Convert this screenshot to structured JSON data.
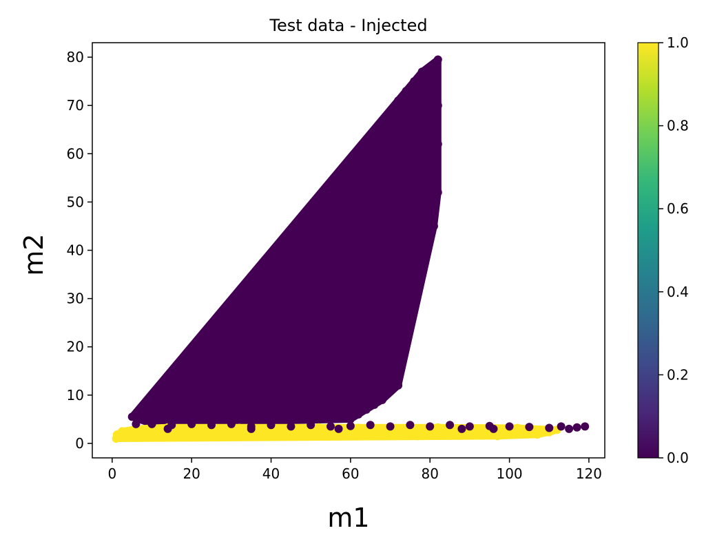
{
  "chart_data": {
    "type": "scatter",
    "title": "Test data - Injected",
    "xlabel": "m1",
    "ylabel": "m2",
    "xlim": [
      -5,
      124
    ],
    "ylim": [
      -3,
      83
    ],
    "xticks": [
      0,
      20,
      40,
      60,
      80,
      100,
      120
    ],
    "yticks": [
      0,
      10,
      20,
      30,
      40,
      50,
      60,
      70,
      80
    ],
    "grid": false,
    "legend": "none",
    "colorbar": {
      "colormap": "viridis",
      "range": [
        0.0,
        1.0
      ],
      "ticks": [
        "0.0",
        "0.2",
        "0.4",
        "0.6",
        "0.8",
        "1.0"
      ],
      "stops": [
        "#440154",
        "#482878",
        "#3e4989",
        "#31688e",
        "#26828e",
        "#1f9e89",
        "#35b779",
        "#6ece58",
        "#b5de2b",
        "#fde725"
      ]
    },
    "series": [
      {
        "value": 0.0,
        "color": "#440154",
        "points": [
          [
            5,
            5.5
          ],
          [
            8,
            7
          ],
          [
            10,
            8
          ],
          [
            12,
            10
          ],
          [
            15,
            12
          ],
          [
            18,
            15
          ],
          [
            20,
            17
          ],
          [
            22,
            19
          ],
          [
            25,
            21
          ],
          [
            28,
            24
          ],
          [
            30,
            26
          ],
          [
            33,
            28
          ],
          [
            35,
            30
          ],
          [
            38,
            33
          ],
          [
            40,
            35
          ],
          [
            42,
            37
          ],
          [
            45,
            40
          ],
          [
            48,
            43
          ],
          [
            50,
            46
          ],
          [
            52,
            48
          ],
          [
            55,
            51
          ],
          [
            58,
            55
          ],
          [
            60,
            58
          ],
          [
            62,
            61
          ],
          [
            65,
            63
          ],
          [
            67,
            65
          ],
          [
            70,
            68
          ],
          [
            72,
            71
          ],
          [
            74,
            73
          ],
          [
            76,
            75
          ],
          [
            78,
            77
          ],
          [
            80,
            77
          ],
          [
            82,
            79.5
          ],
          [
            80,
            75
          ],
          [
            80,
            73
          ],
          [
            82,
            70
          ],
          [
            78,
            70
          ],
          [
            80,
            68
          ],
          [
            81,
            67
          ],
          [
            80,
            64
          ],
          [
            82,
            62
          ],
          [
            78,
            63
          ],
          [
            80,
            59
          ],
          [
            76,
            60
          ],
          [
            78,
            56
          ],
          [
            77,
            55
          ],
          [
            80,
            53
          ],
          [
            82,
            52
          ],
          [
            78,
            51
          ],
          [
            76,
            48
          ],
          [
            80,
            47
          ],
          [
            81,
            45
          ],
          [
            76,
            45
          ],
          [
            75,
            42
          ],
          [
            73,
            40
          ],
          [
            71,
            39
          ],
          [
            74,
            38
          ],
          [
            72,
            36
          ],
          [
            70,
            35
          ],
          [
            71,
            32
          ],
          [
            70,
            30
          ],
          [
            69,
            28
          ],
          [
            68,
            27
          ],
          [
            70,
            25
          ],
          [
            69,
            23
          ],
          [
            67,
            22
          ],
          [
            65,
            22
          ],
          [
            66,
            20
          ],
          [
            65,
            18
          ],
          [
            63,
            17
          ],
          [
            60,
            17
          ],
          [
            58,
            15
          ],
          [
            57,
            14
          ],
          [
            55,
            13
          ],
          [
            52,
            12
          ],
          [
            56,
            10
          ],
          [
            50,
            9
          ],
          [
            45,
            8
          ],
          [
            40,
            7
          ],
          [
            35,
            6
          ],
          [
            30,
            6
          ],
          [
            25,
            5
          ],
          [
            20,
            5
          ],
          [
            15,
            5
          ],
          [
            10,
            4
          ],
          [
            48,
            6
          ],
          [
            55,
            5
          ],
          [
            60,
            5
          ],
          [
            62,
            6
          ],
          [
            64,
            7
          ],
          [
            66,
            8
          ],
          [
            68,
            9
          ],
          [
            70,
            11
          ],
          [
            72,
            12
          ],
          [
            68,
            14
          ],
          [
            70,
            16
          ],
          [
            72,
            18
          ],
          [
            65,
            15
          ],
          [
            62,
            13
          ],
          [
            58,
            11
          ],
          [
            54,
            9
          ],
          [
            66,
            12
          ],
          [
            64,
            10
          ],
          [
            61,
            8
          ],
          [
            59,
            7
          ],
          [
            71,
            21
          ],
          [
            73,
            26
          ],
          [
            75,
            31
          ],
          [
            77,
            34
          ],
          [
            79,
            41
          ],
          [
            81,
            50
          ],
          [
            79,
            57
          ],
          [
            81,
            65
          ],
          [
            77,
            66
          ],
          [
            75,
            62
          ],
          [
            73,
            58
          ],
          [
            71,
            54
          ],
          [
            69,
            49
          ],
          [
            67,
            44
          ],
          [
            65,
            39
          ],
          [
            63,
            35
          ],
          [
            61,
            30
          ],
          [
            59,
            26
          ],
          [
            57,
            22
          ],
          [
            55,
            18
          ],
          [
            53,
            15
          ],
          [
            50,
            11
          ],
          [
            46,
            9
          ],
          [
            42,
            8
          ],
          [
            38,
            7
          ],
          [
            34,
            6
          ],
          [
            30,
            7
          ],
          [
            26,
            6
          ],
          [
            22,
            6
          ],
          [
            18,
            6
          ],
          [
            14,
            6
          ],
          [
            10,
            5
          ],
          [
            7,
            5
          ],
          [
            41,
            20
          ],
          [
            45,
            25
          ],
          [
            50,
            30
          ],
          [
            55,
            35
          ],
          [
            60,
            40
          ],
          [
            47,
            18
          ],
          [
            52,
            22
          ],
          [
            57,
            28
          ],
          [
            62,
            33
          ],
          [
            66,
            46
          ],
          [
            68,
            52
          ],
          [
            70,
            57
          ],
          [
            72,
            62
          ],
          [
            74,
            66
          ],
          [
            76,
            70
          ],
          [
            35,
            15
          ],
          [
            30,
            12
          ],
          [
            25,
            10
          ],
          [
            20,
            9
          ],
          [
            38,
            23
          ],
          [
            44,
            29
          ],
          [
            49,
            36
          ],
          [
            54,
            42
          ],
          [
            59,
            50
          ],
          [
            64,
            56
          ],
          [
            69,
            60
          ],
          [
            43,
            14
          ],
          [
            48,
            20
          ],
          [
            53,
            26
          ],
          [
            58,
            33
          ],
          [
            63,
            44
          ],
          [
            75,
            52
          ],
          [
            77,
            45
          ],
          [
            73,
            47
          ],
          [
            71,
            43
          ],
          [
            76,
            37
          ],
          [
            74,
            33
          ],
          [
            72,
            29
          ],
          [
            70,
            33
          ],
          [
            68,
            31
          ]
        ]
      },
      {
        "value": 1.0,
        "color": "#fde725",
        "points": [
          [
            1,
            1
          ],
          [
            1.5,
            1.5
          ],
          [
            2,
            2
          ],
          [
            2.5,
            2.5
          ],
          [
            1.2,
            1.8
          ],
          [
            3,
            2
          ],
          [
            5,
            2
          ],
          [
            8,
            2
          ],
          [
            12,
            2
          ],
          [
            15,
            2.5
          ],
          [
            18,
            2
          ],
          [
            20,
            1.8
          ],
          [
            25,
            2.2
          ],
          [
            28,
            2.5
          ],
          [
            30,
            2
          ],
          [
            35,
            2.2
          ],
          [
            38,
            1.8
          ],
          [
            40,
            2.5
          ],
          [
            45,
            2
          ],
          [
            48,
            2.3
          ],
          [
            50,
            2
          ],
          [
            55,
            2.5
          ],
          [
            58,
            2
          ],
          [
            60,
            2.2
          ],
          [
            65,
            2.5
          ],
          [
            68,
            2
          ],
          [
            70,
            2.4
          ],
          [
            75,
            2
          ],
          [
            78,
            2.5
          ],
          [
            80,
            2
          ],
          [
            85,
            2.3
          ],
          [
            88,
            2.5
          ],
          [
            90,
            2
          ],
          [
            95,
            2.5
          ],
          [
            98,
            2
          ],
          [
            100,
            2.3
          ],
          [
            103,
            2.5
          ],
          [
            105,
            2
          ],
          [
            108,
            2.5
          ],
          [
            110,
            2.3
          ],
          [
            112,
            2.8
          ],
          [
            6,
            3
          ],
          [
            10,
            3.2
          ],
          [
            14,
            3.3
          ],
          [
            22,
            3
          ],
          [
            32,
            3.2
          ],
          [
            42,
            3
          ],
          [
            52,
            3.3
          ],
          [
            62,
            3.2
          ],
          [
            72,
            3
          ],
          [
            82,
            3.3
          ],
          [
            92,
            3.1
          ],
          [
            102,
            3.2
          ],
          [
            7,
            1.5
          ],
          [
            17,
            1.5
          ],
          [
            27,
            1.6
          ],
          [
            37,
            1.5
          ],
          [
            47,
            1.6
          ],
          [
            57,
            1.5
          ],
          [
            67,
            1.6
          ],
          [
            77,
            1.5
          ],
          [
            87,
            1.6
          ],
          [
            97,
            1.5
          ],
          [
            107,
            1.8
          ]
        ]
      },
      {
        "value": 0.0,
        "color": "#440154",
        "points": [
          [
            6,
            4
          ],
          [
            10,
            4
          ],
          [
            15,
            3.8
          ],
          [
            20,
            4
          ],
          [
            25,
            3.8
          ],
          [
            30,
            4
          ],
          [
            35,
            3.5
          ],
          [
            40,
            3.8
          ],
          [
            45,
            3.5
          ],
          [
            50,
            3.8
          ],
          [
            55,
            3.5
          ],
          [
            60,
            3.6
          ],
          [
            65,
            3.8
          ],
          [
            70,
            3.5
          ],
          [
            75,
            3.8
          ],
          [
            80,
            3.5
          ],
          [
            85,
            3.8
          ],
          [
            90,
            3.5
          ],
          [
            95,
            3.6
          ],
          [
            100,
            3.5
          ],
          [
            105,
            3.4
          ],
          [
            110,
            3.2
          ],
          [
            113,
            3.5
          ],
          [
            115,
            3
          ],
          [
            117,
            3.3
          ],
          [
            119,
            3.5
          ],
          [
            14,
            3
          ],
          [
            35,
            3
          ],
          [
            57,
            3
          ],
          [
            88,
            3
          ],
          [
            96,
            3
          ]
        ]
      }
    ]
  }
}
